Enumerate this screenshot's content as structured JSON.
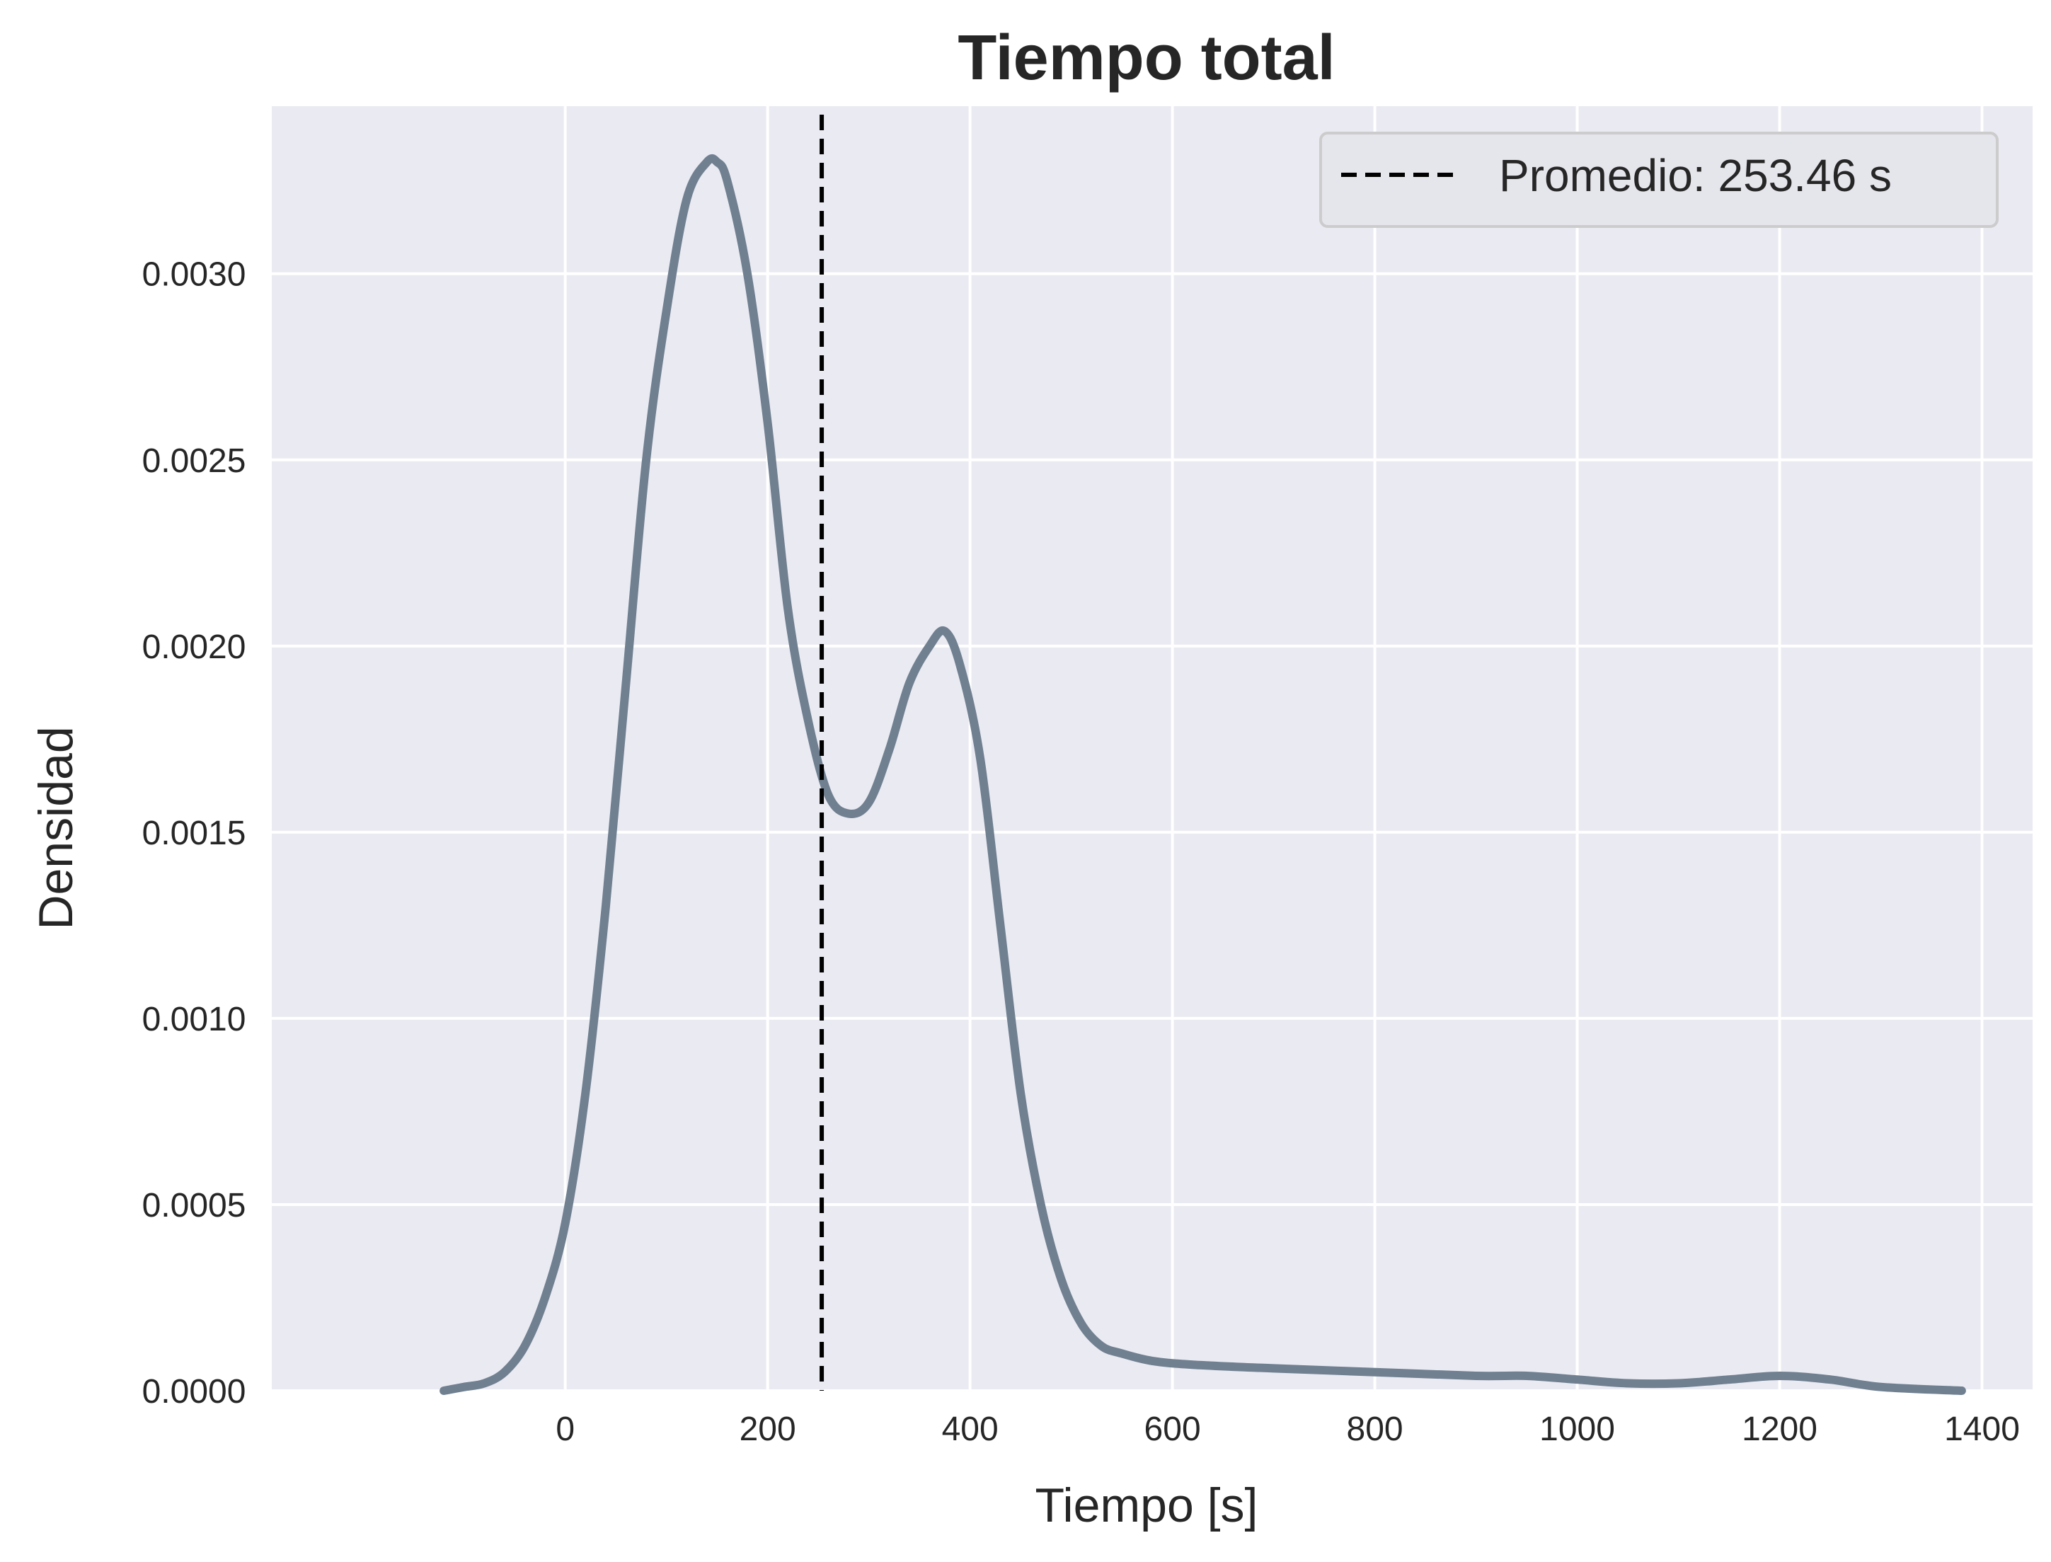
{
  "chart_data": {
    "type": "line",
    "title": "Tiempo total",
    "xlabel": "Tiempo [s]",
    "ylabel": "Densidad",
    "xlim": [
      -290,
      1450
    ],
    "ylim": [
      0,
      0.00345
    ],
    "xticks": [
      0,
      200,
      400,
      600,
      800,
      1000,
      1200,
      1400
    ],
    "xtick_labels": [
      "0",
      "200",
      "400",
      "600",
      "800",
      "1000",
      "1200",
      "1400"
    ],
    "yticks": [
      0.0,
      0.0005,
      0.001,
      0.0015,
      0.002,
      0.0025,
      0.003
    ],
    "ytick_labels": [
      "0.0000",
      "0.0005",
      "0.0010",
      "0.0015",
      "0.0020",
      "0.0025",
      "0.0030"
    ],
    "grid": true,
    "legend_position": "top-right",
    "series": [
      {
        "name": "",
        "color": "#708090",
        "x": [
          -120,
          -100,
          -80,
          -60,
          -40,
          -20,
          0,
          20,
          40,
          60,
          80,
          100,
          120,
          140,
          150,
          160,
          180,
          200,
          220,
          240,
          260,
          280,
          300,
          320,
          340,
          360,
          375,
          390,
          410,
          430,
          450,
          470,
          490,
          510,
          530,
          550,
          580,
          620,
          700,
          800,
          900,
          950,
          1000,
          1050,
          1100,
          1150,
          1200,
          1250,
          1300,
          1380
        ],
        "y": [
          0.0,
          1e-05,
          2e-05,
          5e-05,
          0.00012,
          0.00025,
          0.00045,
          0.0008,
          0.0013,
          0.0019,
          0.0025,
          0.0029,
          0.0032,
          0.0033,
          0.0033,
          0.00325,
          0.003,
          0.0026,
          0.0021,
          0.0018,
          0.0016,
          0.00155,
          0.00158,
          0.00172,
          0.0019,
          0.002,
          0.00204,
          0.00195,
          0.0017,
          0.00125,
          0.0008,
          0.0005,
          0.0003,
          0.00018,
          0.00012,
          0.0001,
          8e-05,
          7e-05,
          6e-05,
          5e-05,
          4e-05,
          4e-05,
          3e-05,
          2e-05,
          2e-05,
          3e-05,
          4e-05,
          3e-05,
          1e-05,
          0.0
        ]
      }
    ],
    "vline": {
      "x": 253.46,
      "label": "Promedio: 253.46 s",
      "color": "#000000"
    },
    "colors": {
      "plot_bg": "#eaeaf2",
      "grid": "#ffffff",
      "legend_bg": "#e5e5ec",
      "legend_border": "#cccccc"
    }
  }
}
